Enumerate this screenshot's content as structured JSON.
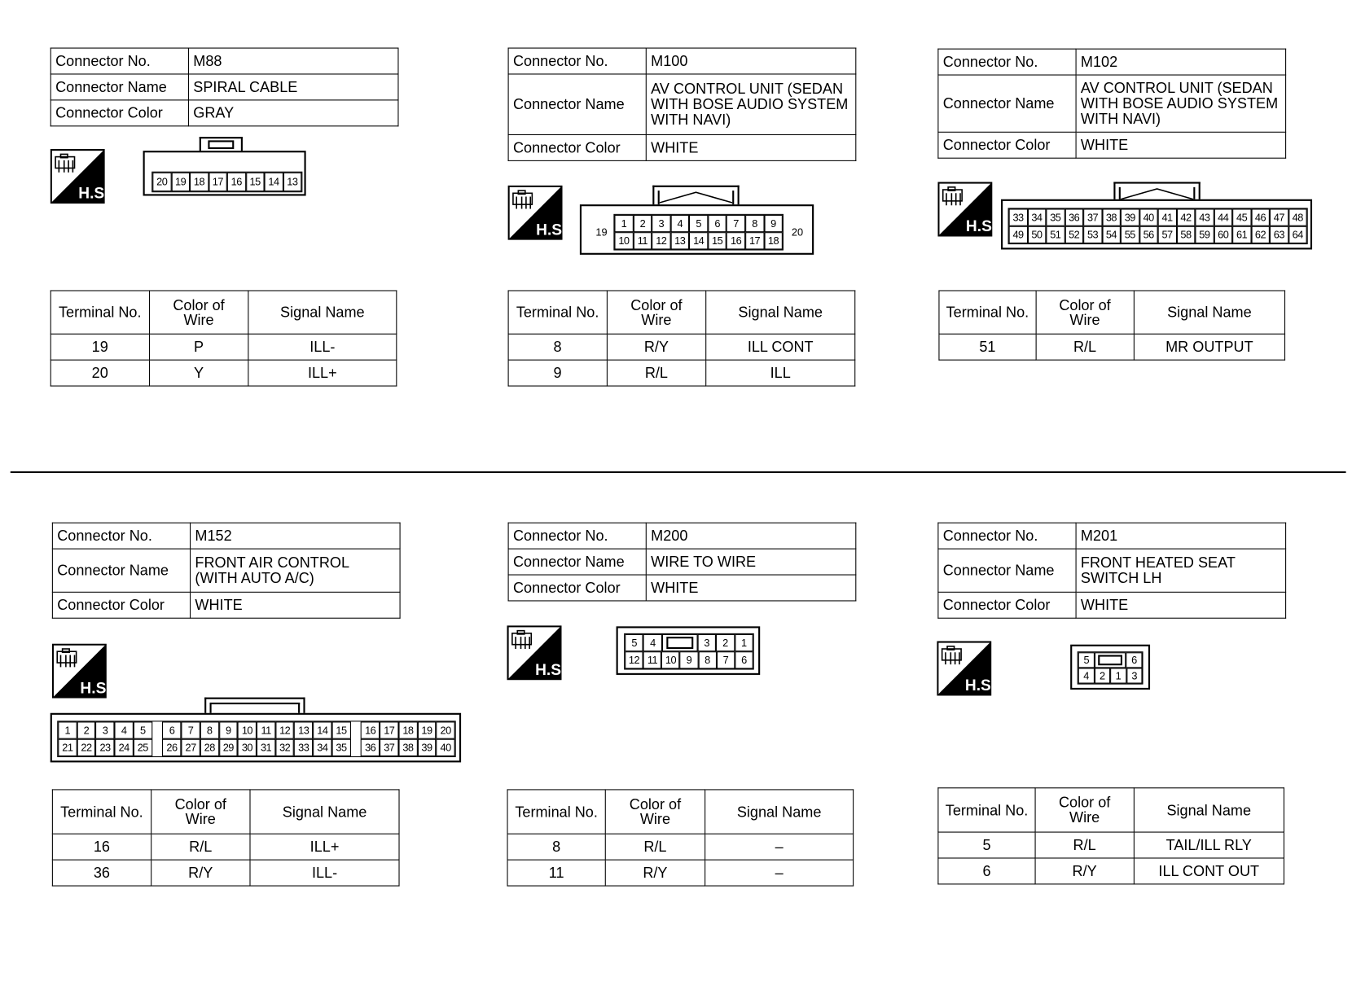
{
  "labels": {
    "connector_no": "Connector No.",
    "connector_name": "Connector Name",
    "connector_color": "Connector Color",
    "terminal_no": "Terminal No.",
    "color_of_wire": "Color of Wire",
    "signal_name": "Signal Name",
    "hs_icon": "H.S."
  },
  "connectors": [
    {
      "no": "M88",
      "name": "SPIRAL CABLE",
      "color": "GRAY",
      "pins": [
        [
          "20",
          "19",
          "18",
          "17",
          "16",
          "15",
          "14",
          "13"
        ]
      ],
      "latch": true,
      "terminals": [
        {
          "t": "19",
          "w": "P",
          "s": "ILL-"
        },
        {
          "t": "20",
          "w": "Y",
          "s": "ILL+"
        }
      ]
    },
    {
      "no": "M100",
      "name": "AV CONTROL UNIT (SEDAN WITH BOSE AUDIO SYSTEM WITH NAVI)",
      "color": "WHITE",
      "pins": [
        [
          "1",
          "2",
          "3",
          "4",
          "5",
          "6",
          "7",
          "8",
          "9"
        ],
        [
          "10",
          "11",
          "12",
          "13",
          "14",
          "15",
          "16",
          "17",
          "18"
        ]
      ],
      "side_left": "19",
      "side_right": "20",
      "terminals": [
        {
          "t": "8",
          "w": "R/Y",
          "s": "ILL CONT"
        },
        {
          "t": "9",
          "w": "R/L",
          "s": "ILL"
        }
      ]
    },
    {
      "no": "M102",
      "name": "AV CONTROL UNIT (SEDAN WITH BOSE AUDIO SYSTEM WITH NAVI)",
      "color": "WHITE",
      "pins": [
        [
          "33",
          "34",
          "35",
          "36",
          "37",
          "38",
          "39",
          "40",
          "41",
          "42",
          "43",
          "44",
          "45",
          "46",
          "47",
          "48"
        ],
        [
          "49",
          "50",
          "51",
          "52",
          "53",
          "54",
          "55",
          "56",
          "57",
          "58",
          "59",
          "60",
          "61",
          "62",
          "63",
          "64"
        ]
      ],
      "terminals": [
        {
          "t": "51",
          "w": "R/L",
          "s": "MR OUTPUT"
        }
      ]
    },
    {
      "no": "M152",
      "name": "FRONT AIR CONTROL (WITH AUTO A/C)",
      "color": "WHITE",
      "pins": [
        [
          "1",
          "2",
          "3",
          "4",
          "5",
          "",
          "6",
          "7",
          "8",
          "9",
          "10",
          "11",
          "12",
          "13",
          "14",
          "15",
          "",
          "16",
          "17",
          "18",
          "19",
          "20"
        ],
        [
          "21",
          "22",
          "23",
          "24",
          "25",
          "",
          "26",
          "27",
          "28",
          "29",
          "30",
          "31",
          "32",
          "33",
          "34",
          "35",
          "",
          "36",
          "37",
          "38",
          "39",
          "40"
        ]
      ],
      "terminals": [
        {
          "t": "16",
          "w": "R/L",
          "s": "ILL+"
        },
        {
          "t": "36",
          "w": "R/Y",
          "s": "ILL-"
        }
      ]
    },
    {
      "no": "M200",
      "name": "WIRE TO WIRE",
      "color": "WHITE",
      "pins": [
        [
          "5",
          "4",
          "#",
          "3",
          "2",
          "1"
        ],
        [
          "12",
          "11",
          "10",
          "9",
          "8",
          "7",
          "6"
        ]
      ],
      "terminals": [
        {
          "t": "8",
          "w": "R/L",
          "s": "–"
        },
        {
          "t": "11",
          "w": "R/Y",
          "s": "–"
        }
      ]
    },
    {
      "no": "M201",
      "name": "FRONT HEATED SEAT SWITCH LH",
      "color": "WHITE",
      "pins": [
        [
          "5",
          "#",
          "6"
        ],
        [
          "4",
          "2",
          "1",
          "3"
        ]
      ],
      "terminals": [
        {
          "t": "5",
          "w": "R/L",
          "s": "TAIL/ILL RLY"
        },
        {
          "t": "6",
          "w": "R/Y",
          "s": "ILL CONT OUT"
        }
      ]
    }
  ]
}
